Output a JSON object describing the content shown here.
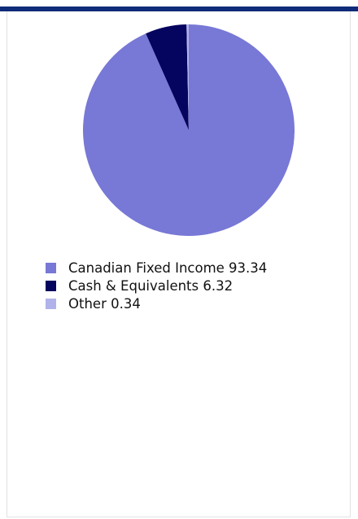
{
  "chart_data": {
    "type": "pie",
    "slices": [
      {
        "label": "Canadian Fixed Income",
        "value": 93.34,
        "display": "Canadian Fixed Income 93.34",
        "color": "#7878d6"
      },
      {
        "label": "Cash & Equivalents",
        "value": 6.32,
        "display": "Cash & Equivalents 6.32",
        "color": "#05045e"
      },
      {
        "label": "Other",
        "value": 0.34,
        "display": "Other 0.34",
        "color": "#b2b2ea"
      }
    ],
    "legend_position": "bottom-left",
    "start_angle": "top, clockwise"
  },
  "colors": {
    "header_bar": "#0f2b7a",
    "panel_border": "#e2e2e2"
  }
}
